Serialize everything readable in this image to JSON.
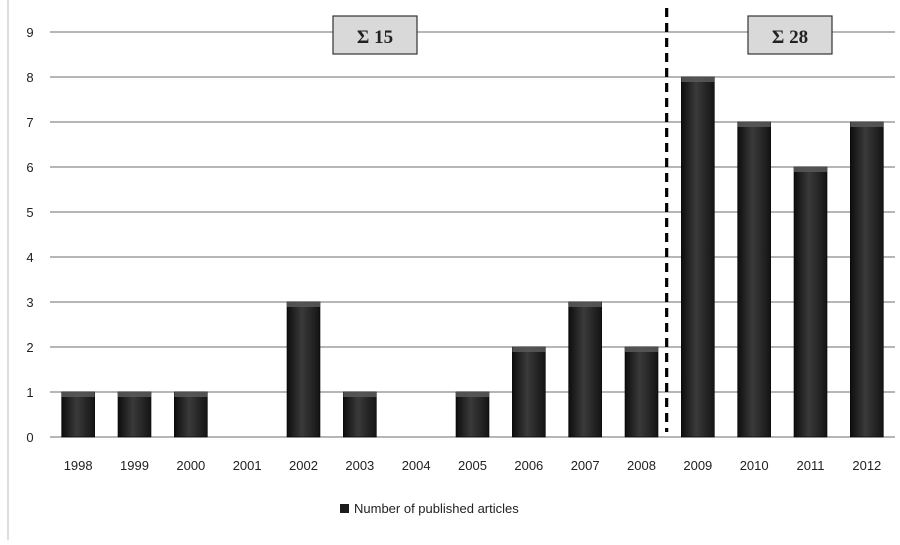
{
  "chart_data": {
    "type": "bar",
    "categories": [
      "1998",
      "1999",
      "2000",
      "2001",
      "2002",
      "2003",
      "2004",
      "2005",
      "2006",
      "2007",
      "2008",
      "2009",
      "2010",
      "2011",
      "2012"
    ],
    "series": [
      {
        "name": "Number of published articles",
        "values": [
          1,
          1,
          1,
          0,
          3,
          1,
          0,
          1,
          2,
          3,
          2,
          8,
          7,
          6,
          7
        ]
      }
    ],
    "ylim": [
      0,
      9
    ],
    "yticks": [
      "0",
      "1",
      "2",
      "3",
      "4",
      "5",
      "6",
      "7",
      "8",
      "9"
    ],
    "grid": true,
    "legend_position": "bottom",
    "divider_between": [
      "2008",
      "2009"
    ],
    "annotations": [
      {
        "text": "Σ 15",
        "period": [
          "1998",
          "2008"
        ]
      },
      {
        "text": "Σ 28",
        "period": [
          "2009",
          "2012"
        ]
      }
    ],
    "colors": {
      "bar": "#1c1c1c",
      "bar_highlight": "#5a5a5a",
      "grid": "#8a8a8a",
      "box_fill": "#d9d9d9"
    }
  }
}
